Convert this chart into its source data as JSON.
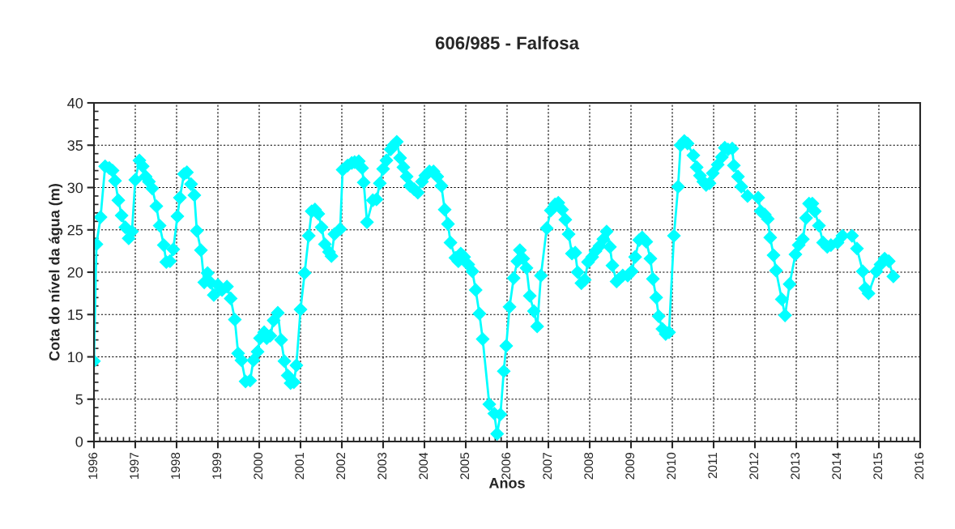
{
  "chart_data": {
    "type": "line",
    "title": "606/985 - Falfosa",
    "xlabel": "Anos",
    "ylabel": "Cota do nível da água (m)",
    "marker": "diamond",
    "line_style": "solid",
    "grid": true,
    "legend": false,
    "xlim": [
      1996,
      2016
    ],
    "xticks": [
      1996,
      1997,
      1998,
      1999,
      2000,
      2001,
      2002,
      2003,
      2004,
      2005,
      2006,
      2007,
      2008,
      2009,
      2010,
      2011,
      2012,
      2013,
      2014,
      2015,
      2016
    ],
    "ylim": [
      0,
      40
    ],
    "yticks": [
      0,
      5,
      10,
      15,
      20,
      25,
      30,
      35,
      40
    ],
    "series": [
      {
        "color": "#00ffff",
        "x": [
          1996.0,
          1996.06,
          1996.16,
          1996.27,
          1996.37,
          1996.45,
          1996.51,
          1996.59,
          1996.67,
          1996.76,
          1996.84,
          1996.92,
          1997.0,
          1997.1,
          1997.18,
          1997.25,
          1997.33,
          1997.41,
          1997.51,
          1997.59,
          1997.69,
          1997.75,
          1997.84,
          1997.92,
          1998.02,
          1998.08,
          1998.18,
          1998.25,
          1998.35,
          1998.43,
          1998.49,
          1998.59,
          1998.67,
          1998.75,
          1998.82,
          1998.9,
          1999.0,
          1999.1,
          1999.22,
          1999.31,
          1999.41,
          1999.49,
          1999.57,
          1999.67,
          1999.78,
          1999.86,
          1999.96,
          2000.02,
          2000.12,
          2000.18,
          2000.27,
          2000.35,
          2000.45,
          2000.53,
          2000.61,
          2000.69,
          2000.76,
          2000.84,
          2000.9,
          2001.0,
          2001.1,
          2001.2,
          2001.27,
          2001.35,
          2001.43,
          2001.51,
          2001.59,
          2001.69,
          2001.75,
          2001.82,
          2001.96,
          2002.02,
          2002.14,
          2002.24,
          2002.31,
          2002.41,
          2002.49,
          2002.53,
          2002.61,
          2002.75,
          2002.84,
          2002.92,
          2003.0,
          2003.08,
          2003.18,
          2003.25,
          2003.33,
          2003.41,
          2003.49,
          2003.57,
          2003.65,
          2003.75,
          2003.84,
          2003.94,
          2004.02,
          2004.12,
          2004.22,
          2004.31,
          2004.41,
          2004.49,
          2004.57,
          2004.63,
          2004.75,
          2004.82,
          2004.88,
          2004.96,
          2005.06,
          2005.16,
          2005.24,
          2005.33,
          2005.41,
          2005.57,
          2005.69,
          2005.76,
          2005.84,
          2005.92,
          2005.98,
          2006.06,
          2006.16,
          2006.25,
          2006.31,
          2006.39,
          2006.47,
          2006.55,
          2006.65,
          2006.73,
          2006.82,
          2006.96,
          2007.06,
          2007.16,
          2007.24,
          2007.33,
          2007.41,
          2007.49,
          2007.57,
          2007.65,
          2007.71,
          2007.8,
          2007.88,
          2007.96,
          2008.06,
          2008.14,
          2008.24,
          2008.33,
          2008.41,
          2008.49,
          2008.55,
          2008.65,
          2008.71,
          2008.8,
          2008.92,
          2009.02,
          2009.1,
          2009.2,
          2009.27,
          2009.37,
          2009.47,
          2009.53,
          2009.61,
          2009.67,
          2009.76,
          2009.84,
          2009.92,
          2010.04,
          2010.14,
          2010.2,
          2010.29,
          2010.37,
          2010.51,
          2010.59,
          2010.67,
          2010.75,
          2010.82,
          2010.9,
          2010.98,
          2011.1,
          2011.2,
          2011.27,
          2011.35,
          2011.45,
          2011.49,
          2011.59,
          2011.67,
          2011.82,
          2012.08,
          2012.14,
          2012.24,
          2012.31,
          2012.37,
          2012.45,
          2012.51,
          2012.65,
          2012.73,
          2012.84,
          2012.98,
          2013.06,
          2013.16,
          2013.24,
          2013.31,
          2013.39,
          2013.45,
          2013.55,
          2013.65,
          2013.75,
          2013.84,
          2014.0,
          2014.12,
          2014.35,
          2014.47,
          2014.61,
          2014.67,
          2014.75,
          2014.94,
          2015.04,
          2015.14,
          2015.24,
          2015.35
        ],
        "values": [
          9.5,
          23.3,
          26.5,
          32.5,
          32.3,
          32,
          30.8,
          28.5,
          26.7,
          25.3,
          24,
          24.8,
          30.9,
          33.2,
          32.5,
          31.3,
          30.7,
          29.9,
          27.8,
          25.5,
          23.2,
          21.2,
          21.3,
          22.7,
          26.6,
          28.8,
          31.6,
          31.8,
          30.4,
          29.1,
          24.9,
          22.6,
          18.8,
          19.9,
          18.8,
          17.3,
          18.5,
          17.9,
          18.3,
          16.9,
          14.4,
          10.4,
          9.6,
          7.1,
          7.2,
          9.6,
          10.6,
          12.2,
          12.9,
          12.2,
          12.5,
          14.3,
          15.2,
          12,
          9.5,
          7.8,
          6.9,
          7,
          9,
          15.6,
          19.9,
          24.3,
          27.2,
          27.4,
          26.9,
          25.3,
          23.3,
          22.4,
          21.9,
          24.5,
          25.1,
          32.1,
          32.6,
          32.9,
          33,
          33.1,
          32.3,
          30.6,
          25.9,
          28.5,
          28.6,
          30.5,
          32.2,
          33.2,
          34.5,
          35,
          35.4,
          33.5,
          32.4,
          31.3,
          30.2,
          29.8,
          29.4,
          30.7,
          31.4,
          31.9,
          31.9,
          31.3,
          30.2,
          27.4,
          25.7,
          23.5,
          21.7,
          21.3,
          22.2,
          21.8,
          20.9,
          20.1,
          17.9,
          15.1,
          12.1,
          4.4,
          3.3,
          0.9,
          3.2,
          8.3,
          11.3,
          15.9,
          19.3,
          21.3,
          22.6,
          21.6,
          20.5,
          17.2,
          15.4,
          13.6,
          19.6,
          25.2,
          27.3,
          28,
          28.2,
          27.4,
          26.2,
          24.5,
          22.2,
          22.3,
          20,
          18.7,
          19.1,
          21.2,
          21.8,
          22.5,
          23.1,
          23.9,
          24.8,
          23,
          20.8,
          18.9,
          19.2,
          19.6,
          19.6,
          20.1,
          21.8,
          23.8,
          24.1,
          23.6,
          21.6,
          19.2,
          17,
          14.8,
          13.3,
          12.7,
          12.9,
          24.3,
          30.1,
          35,
          35.5,
          35.2,
          33.8,
          32.4,
          31.4,
          30.7,
          30.3,
          30.5,
          31.7,
          32.7,
          33.6,
          34.7,
          34.5,
          34.6,
          32.6,
          31.3,
          30.1,
          29,
          28.8,
          27.2,
          26.8,
          26.3,
          24.1,
          22,
          20.2,
          16.8,
          14.9,
          18.6,
          22.1,
          23.2,
          23.9,
          26.4,
          28.1,
          28.1,
          27.2,
          25.5,
          23.5,
          23,
          23.2,
          23.5,
          24.3,
          24.3,
          22.8,
          20.1,
          18.1,
          17.5,
          20.1,
          20.9,
          21.6,
          21.3,
          19.5
        ]
      }
    ]
  }
}
